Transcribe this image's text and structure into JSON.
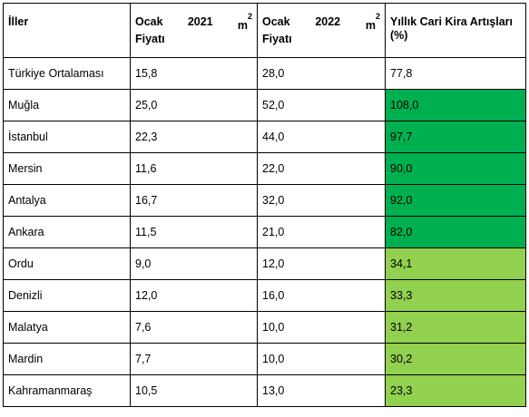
{
  "table": {
    "headers": {
      "city": "İller",
      "jan2021": {
        "line1_word": "Ocak",
        "line1_year": "2021",
        "unit": "m",
        "unit_exp": "2",
        "line2": "Fiyatı"
      },
      "jan2022": {
        "line1_word": "Ocak",
        "line1_year": "2022",
        "unit": "m",
        "unit_exp": "2",
        "line2": "Fiyatı"
      },
      "increase": "Yıllık Cari Kira Artışları (%)"
    },
    "rows": [
      {
        "city": "Türkiye Ortalaması",
        "jan2021": "15,8",
        "jan2022": "28,0",
        "increase": "77,8",
        "highlight": "none"
      },
      {
        "city": "Muğla",
        "jan2021": "25,0",
        "jan2022": "52,0",
        "increase": "108,0",
        "highlight": "dark"
      },
      {
        "city": "İstanbul",
        "jan2021": "22,3",
        "jan2022": "44,0",
        "increase": "97,7",
        "highlight": "dark"
      },
      {
        "city": "Mersin",
        "jan2021": "11,6",
        "jan2022": "22,0",
        "increase": "90,0",
        "highlight": "dark"
      },
      {
        "city": "Antalya",
        "jan2021": "16,7",
        "jan2022": "32,0",
        "increase": "92,0",
        "highlight": "dark"
      },
      {
        "city": "Ankara",
        "jan2021": "11,5",
        "jan2022": "21,0",
        "increase": "82,0",
        "highlight": "dark"
      },
      {
        "city": "Ordu",
        "jan2021": "9,0",
        "jan2022": "12,0",
        "increase": "34,1",
        "highlight": "light"
      },
      {
        "city": "Denizli",
        "jan2021": "12,0",
        "jan2022": "16,0",
        "increase": "33,3",
        "highlight": "light"
      },
      {
        "city": "Malatya",
        "jan2021": "7,6",
        "jan2022": "10,0",
        "increase": "31,2",
        "highlight": "light"
      },
      {
        "city": "Mardin",
        "jan2021": "7,7",
        "jan2022": "10,0",
        "increase": "30,2",
        "highlight": "light"
      },
      {
        "city": "Kahramanmaraş",
        "jan2021": "10,5",
        "jan2022": "13,0",
        "increase": "23,3",
        "highlight": "light"
      }
    ]
  },
  "colors": {
    "dark_green": "#00b050",
    "light_green": "#92d050",
    "border": "#000000"
  }
}
